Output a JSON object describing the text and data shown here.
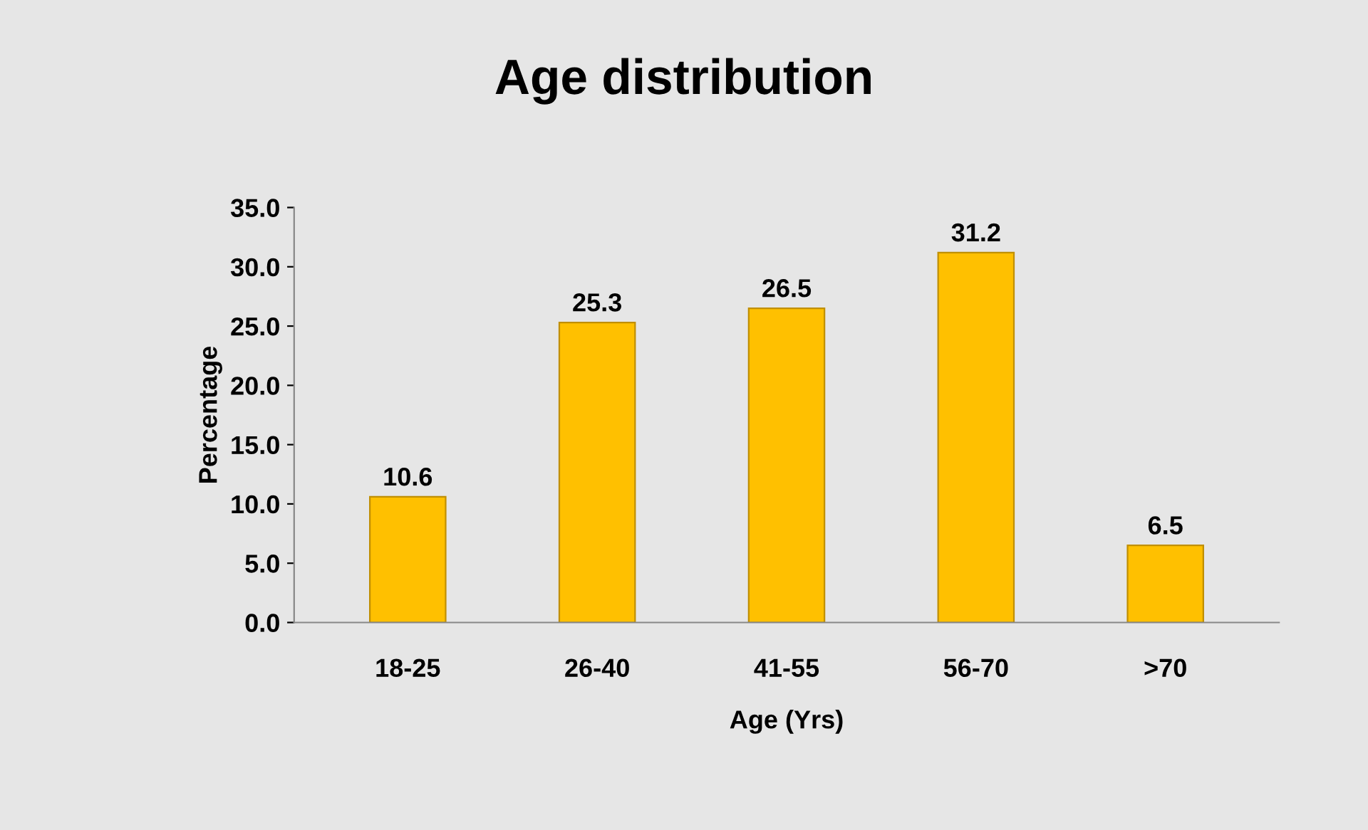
{
  "chart_data": {
    "type": "bar",
    "title": "Age distribution",
    "xlabel": "Age (Yrs)",
    "ylabel": "Percentage",
    "categories": [
      "18-25",
      "26-40",
      "41-55",
      "56-70",
      ">70"
    ],
    "values": [
      10.6,
      25.3,
      26.5,
      31.2,
      6.5
    ],
    "color": "#ffc000",
    "ylim": [
      0,
      35
    ],
    "yticks": [
      {
        "value": 0,
        "label": "0.0"
      },
      {
        "value": 5,
        "label": "5.0"
      },
      {
        "value": 10,
        "label": "10.0"
      },
      {
        "value": 15,
        "label": "15.0"
      },
      {
        "value": 20,
        "label": "20.0"
      },
      {
        "value": 25,
        "label": "25.0"
      },
      {
        "value": 30,
        "label": "30.0"
      },
      {
        "value": 35,
        "label": "35.0"
      }
    ],
    "data_labels": true,
    "grid": false,
    "legend": false
  }
}
